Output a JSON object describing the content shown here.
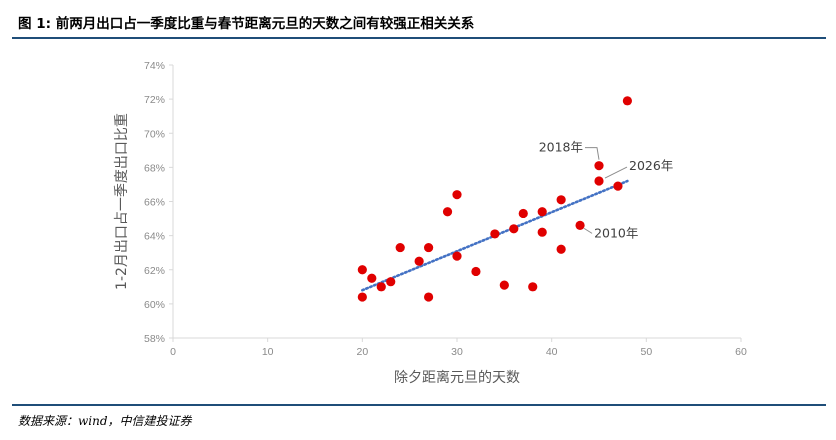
{
  "figure": {
    "title": "图 1: 前两月出口占一季度比重与春节距离元旦的天数之间有较强正相关关系",
    "source": "数据来源：wind，中信建投证券"
  },
  "chart_data": {
    "type": "scatter",
    "title": "",
    "xlabel": "除夕距离元旦的天数",
    "ylabel": "1-2月出口占一季度出口比重",
    "xlim": [
      0,
      60
    ],
    "ylim": [
      58,
      74
    ],
    "x_ticks": [
      0,
      10,
      20,
      30,
      40,
      50,
      60
    ],
    "x_tick_labels": [
      "0",
      "10",
      "20",
      "30",
      "40",
      "50",
      "60"
    ],
    "y_ticks": [
      58,
      60,
      62,
      64,
      66,
      68,
      70,
      72,
      74
    ],
    "y_tick_labels": [
      "58%",
      "60%",
      "62%",
      "64%",
      "66%",
      "68%",
      "70%",
      "72%",
      "74%"
    ],
    "grid": false,
    "legend": "none",
    "point_color": "#e00000",
    "trendline_color": "#4472c4",
    "series": [
      {
        "points": [
          {
            "x": 20,
            "y": 62.0
          },
          {
            "x": 20,
            "y": 60.4
          },
          {
            "x": 21,
            "y": 61.5
          },
          {
            "x": 22,
            "y": 61.0
          },
          {
            "x": 23,
            "y": 61.3
          },
          {
            "x": 24,
            "y": 63.3
          },
          {
            "x": 26,
            "y": 62.5
          },
          {
            "x": 27,
            "y": 63.3
          },
          {
            "x": 27,
            "y": 60.4
          },
          {
            "x": 29,
            "y": 65.4
          },
          {
            "x": 30,
            "y": 66.4
          },
          {
            "x": 30,
            "y": 62.8
          },
          {
            "x": 32,
            "y": 61.9
          },
          {
            "x": 34,
            "y": 64.1
          },
          {
            "x": 35,
            "y": 61.1
          },
          {
            "x": 36,
            "y": 64.4
          },
          {
            "x": 37,
            "y": 65.3
          },
          {
            "x": 38,
            "y": 61.0
          },
          {
            "x": 39,
            "y": 65.4
          },
          {
            "x": 39,
            "y": 64.2
          },
          {
            "x": 41,
            "y": 66.1
          },
          {
            "x": 41,
            "y": 63.2
          },
          {
            "x": 43,
            "y": 64.6
          },
          {
            "x": 45,
            "y": 68.1
          },
          {
            "x": 45,
            "y": 67.2
          },
          {
            "x": 47,
            "y": 66.9
          },
          {
            "x": 48,
            "y": 71.9
          }
        ]
      }
    ],
    "trendline": {
      "x": [
        20,
        48
      ],
      "y": [
        60.8,
        67.2
      ]
    },
    "annotations": [
      {
        "text": "2018年",
        "x": 45,
        "y": 68.1,
        "side": "left"
      },
      {
        "text": "2026年",
        "x": 45,
        "y": 67.2,
        "side": "right"
      },
      {
        "text": "2010年",
        "x": 43,
        "y": 64.6,
        "side": "right"
      }
    ]
  }
}
